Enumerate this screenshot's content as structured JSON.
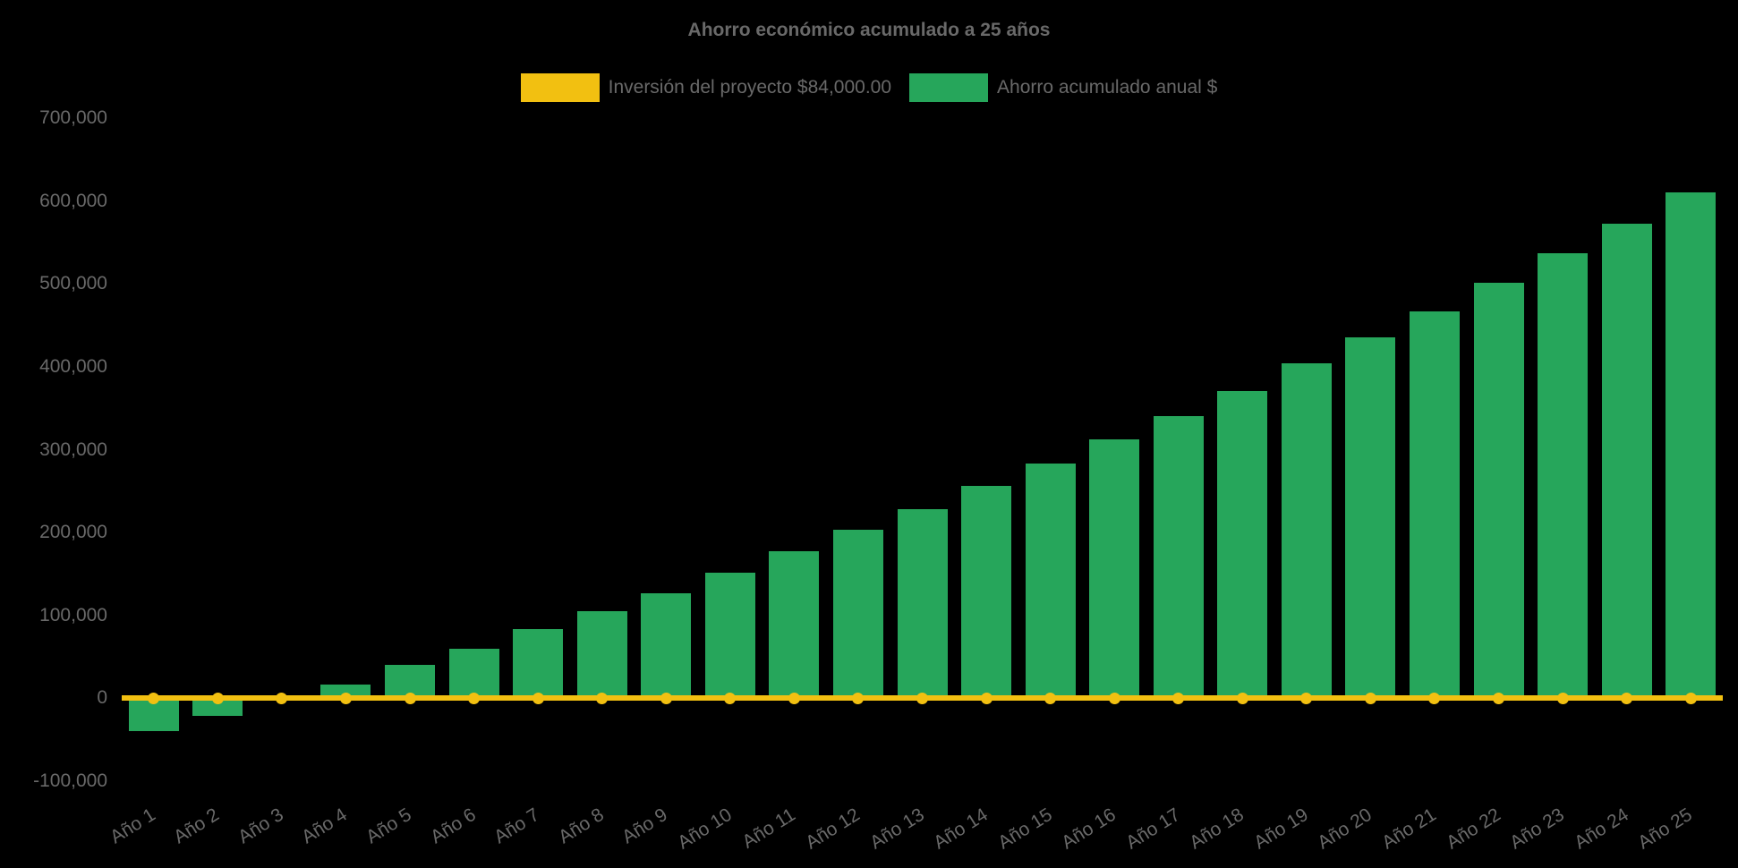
{
  "title": "Ahorro económico acumulado a 25 años",
  "legend": [
    {
      "label": "Inversión del proyecto $84,000.00",
      "color": "#f2c011",
      "series": "line"
    },
    {
      "label": "Ahorro acumulado anual $",
      "color": "#26a65b",
      "series": "bar"
    }
  ],
  "colors": {
    "background": "#000000",
    "text": "#696969",
    "bar": "#26a65b",
    "line": "#f2c011"
  },
  "chart_data": {
    "type": "bar",
    "title": "Ahorro económico acumulado a 25 años",
    "categories": [
      "Año 1",
      "Año 2",
      "Año 3",
      "Año 4",
      "Año 5",
      "Año 6",
      "Año 7",
      "Año 8",
      "Año 9",
      "Año 10",
      "Año 11",
      "Año 12",
      "Año 13",
      "Año 14",
      "Año 15",
      "Año 16",
      "Año 17",
      "Año 18",
      "Año 19",
      "Año 20",
      "Año 21",
      "Año 22",
      "Año 23",
      "Año 24",
      "Año 25"
    ],
    "series": [
      {
        "name": "Ahorro acumulado anual $",
        "type": "bar",
        "color": "#26a65b",
        "values": [
          -40000,
          -21000,
          0,
          17000,
          40000,
          60000,
          83000,
          105000,
          127000,
          152000,
          177000,
          203000,
          228000,
          256000,
          283000,
          312000,
          341000,
          371000,
          404000,
          435000,
          467000,
          501000,
          537000,
          573000,
          610000
        ]
      },
      {
        "name": "Inversión del proyecto $84,000.00",
        "type": "line",
        "color": "#f2c011",
        "values": [
          0,
          0,
          0,
          0,
          0,
          0,
          0,
          0,
          0,
          0,
          0,
          0,
          0,
          0,
          0,
          0,
          0,
          0,
          0,
          0,
          0,
          0,
          0,
          0,
          0
        ]
      }
    ],
    "xlabel": "",
    "ylabel": "",
    "ylim": [
      -100000,
      700000
    ],
    "ytick_step": 100000,
    "ytick_labels": [
      "700,000",
      "600,000",
      "500,000",
      "400,000",
      "300,000",
      "200,000",
      "100,000",
      "0",
      "-100,000"
    ],
    "grid": false,
    "legend_position": "top",
    "x_label_rotation_deg": -32
  }
}
